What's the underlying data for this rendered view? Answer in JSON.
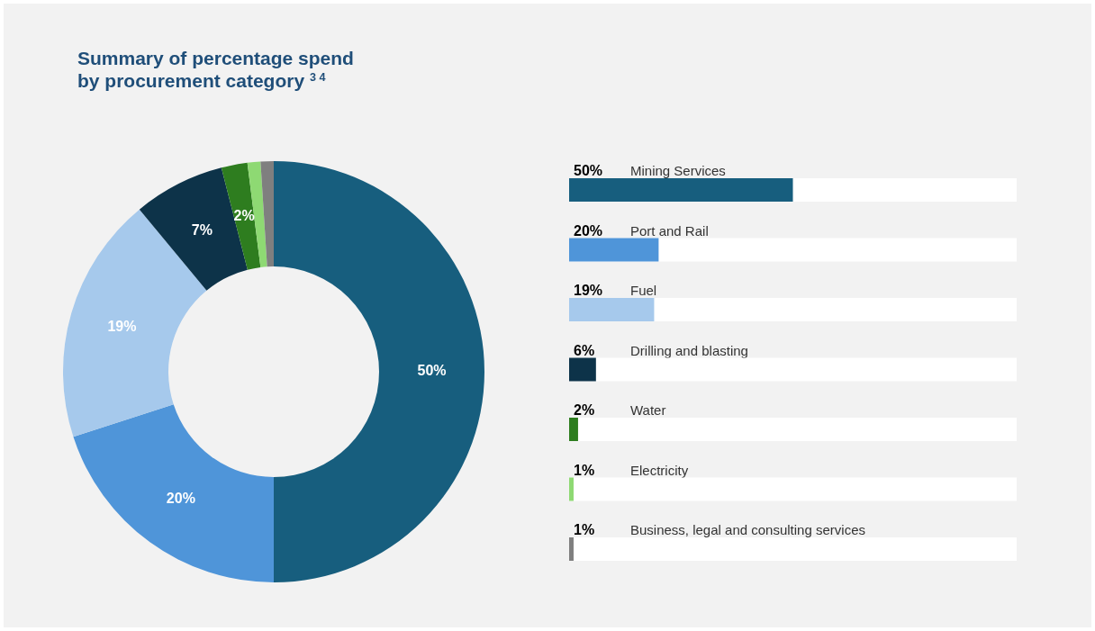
{
  "chart_data": [
    {
      "type": "donut",
      "title": "Summary of percentage spend by procurement category $^{3 4}$",
      "categories": [
        null,
        null,
        null,
        null,
        null,
        null,
        null
      ],
      "values": [
        50,
        20,
        19,
        7,
        2,
        1,
        1
      ],
      "value_labels": [
        "50%",
        "20%",
        "19%",
        "7%",
        "2%",
        null,
        null
      ],
      "colors": [
        "#175e7e",
        "#4f95d9",
        "#a6c9ec",
        "#0d3349",
        "#2e7d1f",
        "#8ed973",
        "#7f7f7f"
      ]
    },
    {
      "type": "bar",
      "orientation": "horizontal",
      "categories": [
        "Mining Services",
        "Port and Rail",
        "Fuel",
        "Drilling and blasting",
        "Water",
        "Electricity",
        "Business, legal and consulting services"
      ],
      "values": [
        50,
        20,
        19,
        6,
        2,
        1,
        1
      ],
      "value_labels": [
        "50%",
        "20%",
        "19%",
        "6%",
        "2%",
        "1%",
        "1%"
      ],
      "colors": [
        "#175e7e",
        "#4f95d9",
        "#a6c9ec",
        "#0d3349",
        "#2e7d1f",
        "#8ed973",
        "#7f7f7f"
      ],
      "xlim": [
        0,
        100
      ],
      "tick_labels": false
    }
  ]
}
